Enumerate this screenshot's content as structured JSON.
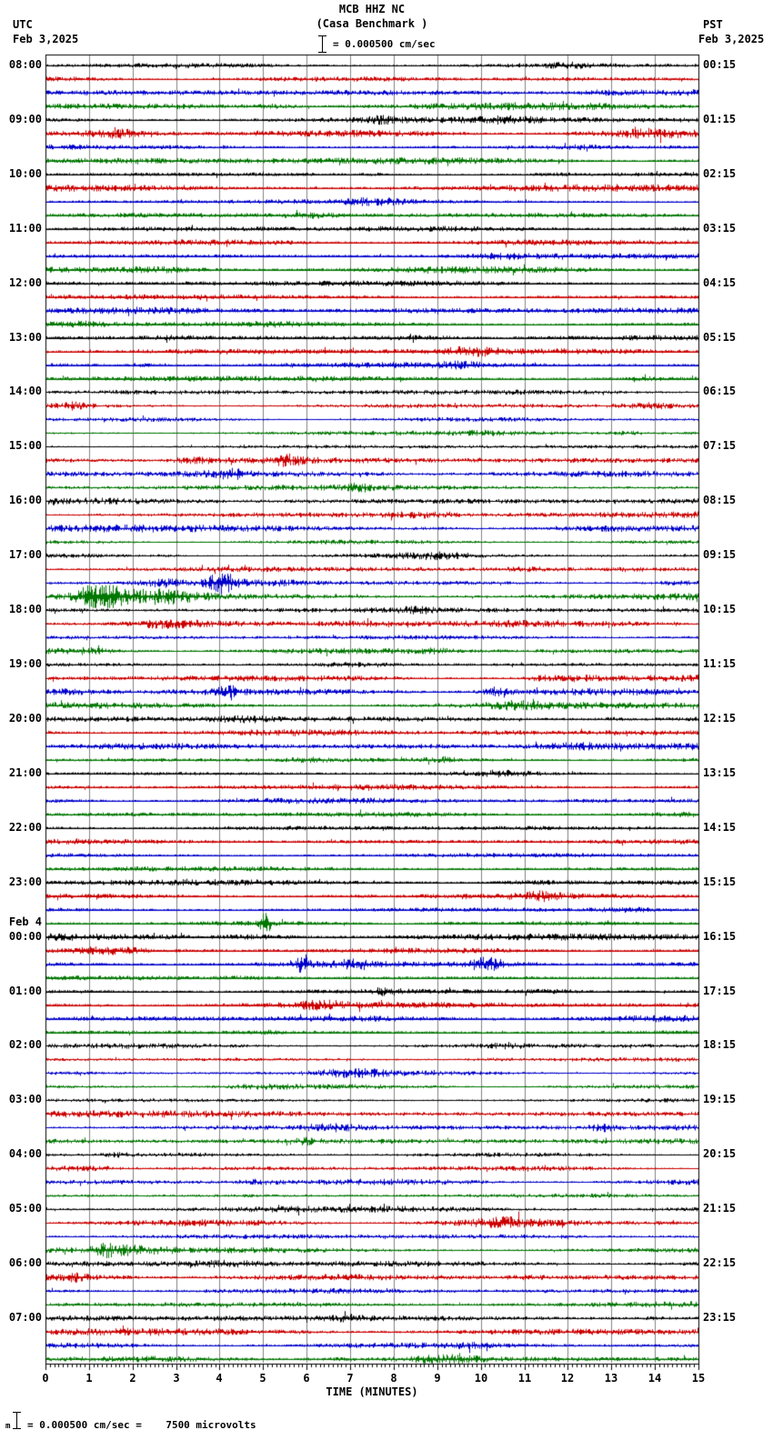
{
  "header": {
    "station_line": "MCB HHZ NC",
    "station_desc": "(Casa Benchmark )",
    "scale_text": "= 0.000500 cm/sec",
    "left_timezone": "UTC",
    "left_date": "Feb 3,2025",
    "right_timezone": "PST",
    "right_date": "Feb 3,2025"
  },
  "axis": {
    "axis_label": "TIME (MINUTES)",
    "tick_labels": [
      "0",
      "1",
      "2",
      "3",
      "4",
      "5",
      "6",
      "7",
      "8",
      "9",
      "10",
      "11",
      "12",
      "13",
      "14",
      "15"
    ]
  },
  "footer": {
    "marker_label": "m",
    "note_text": "= 0.000500 cm/sec =    7500 microvolts"
  },
  "chart_data": {
    "type": "line",
    "subtype": "helicorder-seismogram",
    "title": "MCB HHZ NC (Casa Benchmark )",
    "x_range_minutes": [
      0,
      15
    ],
    "minutes_per_row": 15,
    "rows": 96,
    "trace_cycle_colors": [
      "#000000",
      "#CC0000",
      "#0000CC",
      "#007700"
    ],
    "grid_color": "#808080",
    "frame_color": "#000000",
    "utc_labels": [
      {
        "row": 0,
        "text": "08:00"
      },
      {
        "row": 4,
        "text": "09:00"
      },
      {
        "row": 8,
        "text": "10:00"
      },
      {
        "row": 12,
        "text": "11:00"
      },
      {
        "row": 16,
        "text": "12:00"
      },
      {
        "row": 20,
        "text": "13:00"
      },
      {
        "row": 24,
        "text": "14:00"
      },
      {
        "row": 28,
        "text": "15:00"
      },
      {
        "row": 32,
        "text": "16:00"
      },
      {
        "row": 36,
        "text": "17:00"
      },
      {
        "row": 40,
        "text": "18:00"
      },
      {
        "row": 44,
        "text": "19:00"
      },
      {
        "row": 48,
        "text": "20:00"
      },
      {
        "row": 52,
        "text": "21:00"
      },
      {
        "row": 56,
        "text": "22:00"
      },
      {
        "row": 60,
        "text": "23:00"
      },
      {
        "row": 64,
        "text": "00:00"
      },
      {
        "row": 68,
        "text": "01:00"
      },
      {
        "row": 72,
        "text": "02:00"
      },
      {
        "row": 76,
        "text": "03:00"
      },
      {
        "row": 80,
        "text": "04:00"
      },
      {
        "row": 84,
        "text": "05:00"
      },
      {
        "row": 88,
        "text": "06:00"
      },
      {
        "row": 92,
        "text": "07:00"
      }
    ],
    "date_break": {
      "row": 64,
      "label": "Feb 4"
    },
    "pst_labels": [
      {
        "row": 0,
        "text": "00:15"
      },
      {
        "row": 4,
        "text": "01:15"
      },
      {
        "row": 8,
        "text": "02:15"
      },
      {
        "row": 12,
        "text": "03:15"
      },
      {
        "row": 16,
        "text": "04:15"
      },
      {
        "row": 20,
        "text": "05:15"
      },
      {
        "row": 24,
        "text": "06:15"
      },
      {
        "row": 28,
        "text": "07:15"
      },
      {
        "row": 32,
        "text": "08:15"
      },
      {
        "row": 36,
        "text": "09:15"
      },
      {
        "row": 40,
        "text": "10:15"
      },
      {
        "row": 44,
        "text": "11:15"
      },
      {
        "row": 48,
        "text": "12:15"
      },
      {
        "row": 52,
        "text": "13:15"
      },
      {
        "row": 56,
        "text": "14:15"
      },
      {
        "row": 60,
        "text": "15:15"
      },
      {
        "row": 64,
        "text": "16:15"
      },
      {
        "row": 68,
        "text": "17:15"
      },
      {
        "row": 72,
        "text": "18:15"
      },
      {
        "row": 76,
        "text": "19:15"
      },
      {
        "row": 80,
        "text": "20:15"
      },
      {
        "row": 84,
        "text": "21:15"
      },
      {
        "row": 88,
        "text": "22:15"
      },
      {
        "row": 92,
        "text": "23:15"
      }
    ],
    "events": [
      {
        "row": 38,
        "t0": 1.9,
        "t1": 3.4,
        "tp": 2.7,
        "mult": 2.0
      },
      {
        "row": 38,
        "t0": 3.5,
        "t1": 4.5,
        "tp": 4.05,
        "mult": 5.5
      },
      {
        "row": 38,
        "t0": 4.4,
        "t1": 7.5,
        "tp": 5.2,
        "mult": 1.4
      },
      {
        "row": 39,
        "t0": 0.75,
        "t1": 2.0,
        "tp": 1.25,
        "mult": 4.2
      },
      {
        "row": 39,
        "t0": 2.0,
        "t1": 4.6,
        "tp": 2.6,
        "mult": 1.5
      },
      {
        "row": 46,
        "t0": 3.9,
        "t1": 4.6,
        "tp": 4.2,
        "mult": 2.0
      },
      {
        "row": 46,
        "t0": 10.0,
        "t1": 10.9,
        "tp": 10.4,
        "mult": 2.0
      },
      {
        "row": 63,
        "t0": 4.9,
        "t1": 5.2,
        "tp": 5.03,
        "mult": 6.5
      },
      {
        "row": 66,
        "t0": 5.7,
        "t1": 6.1,
        "tp": 5.9,
        "mult": 3.2
      },
      {
        "row": 66,
        "t0": 9.6,
        "t1": 10.9,
        "tp": 10.15,
        "mult": 3.8
      }
    ]
  }
}
